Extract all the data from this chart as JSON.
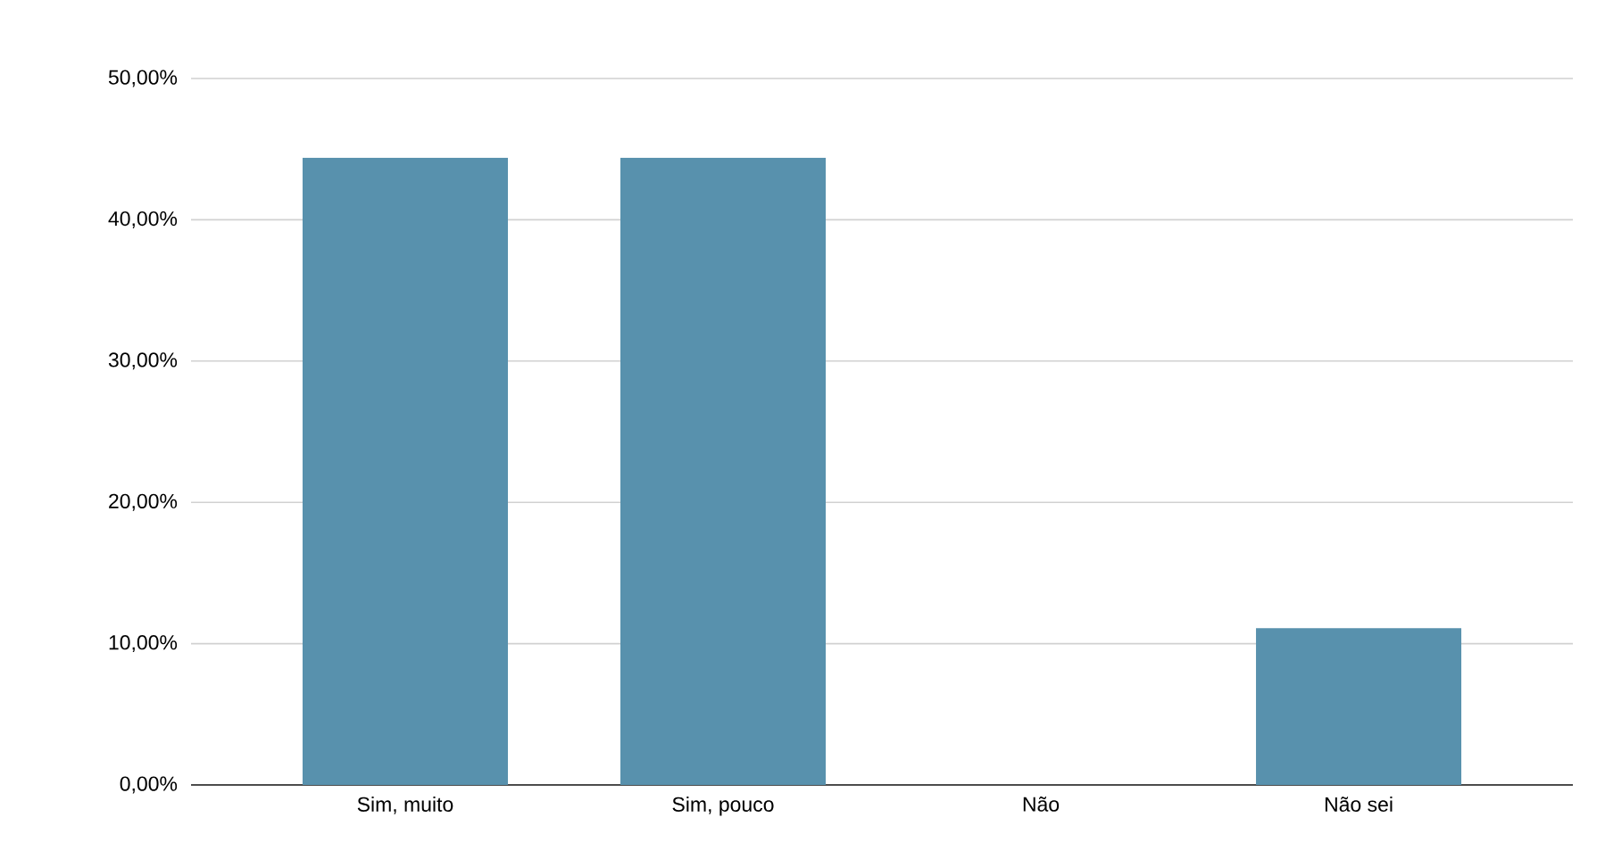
{
  "chart_data": {
    "type": "bar",
    "categories": [
      "Sim, muito",
      "Sim, pouco",
      "Não",
      "Não sei"
    ],
    "values": [
      44.4,
      44.4,
      0,
      11.1
    ],
    "color": "#5891ad",
    "ylim": [
      0,
      50
    ],
    "yticks": [
      {
        "value": 0,
        "label": "0,00%"
      },
      {
        "value": 10,
        "label": "10,00%"
      },
      {
        "value": 20,
        "label": "20,00%"
      },
      {
        "value": 30,
        "label": "30,00%"
      },
      {
        "value": 40,
        "label": "40,00%"
      },
      {
        "value": 50,
        "label": "50,00%"
      }
    ],
    "grid": "y"
  }
}
